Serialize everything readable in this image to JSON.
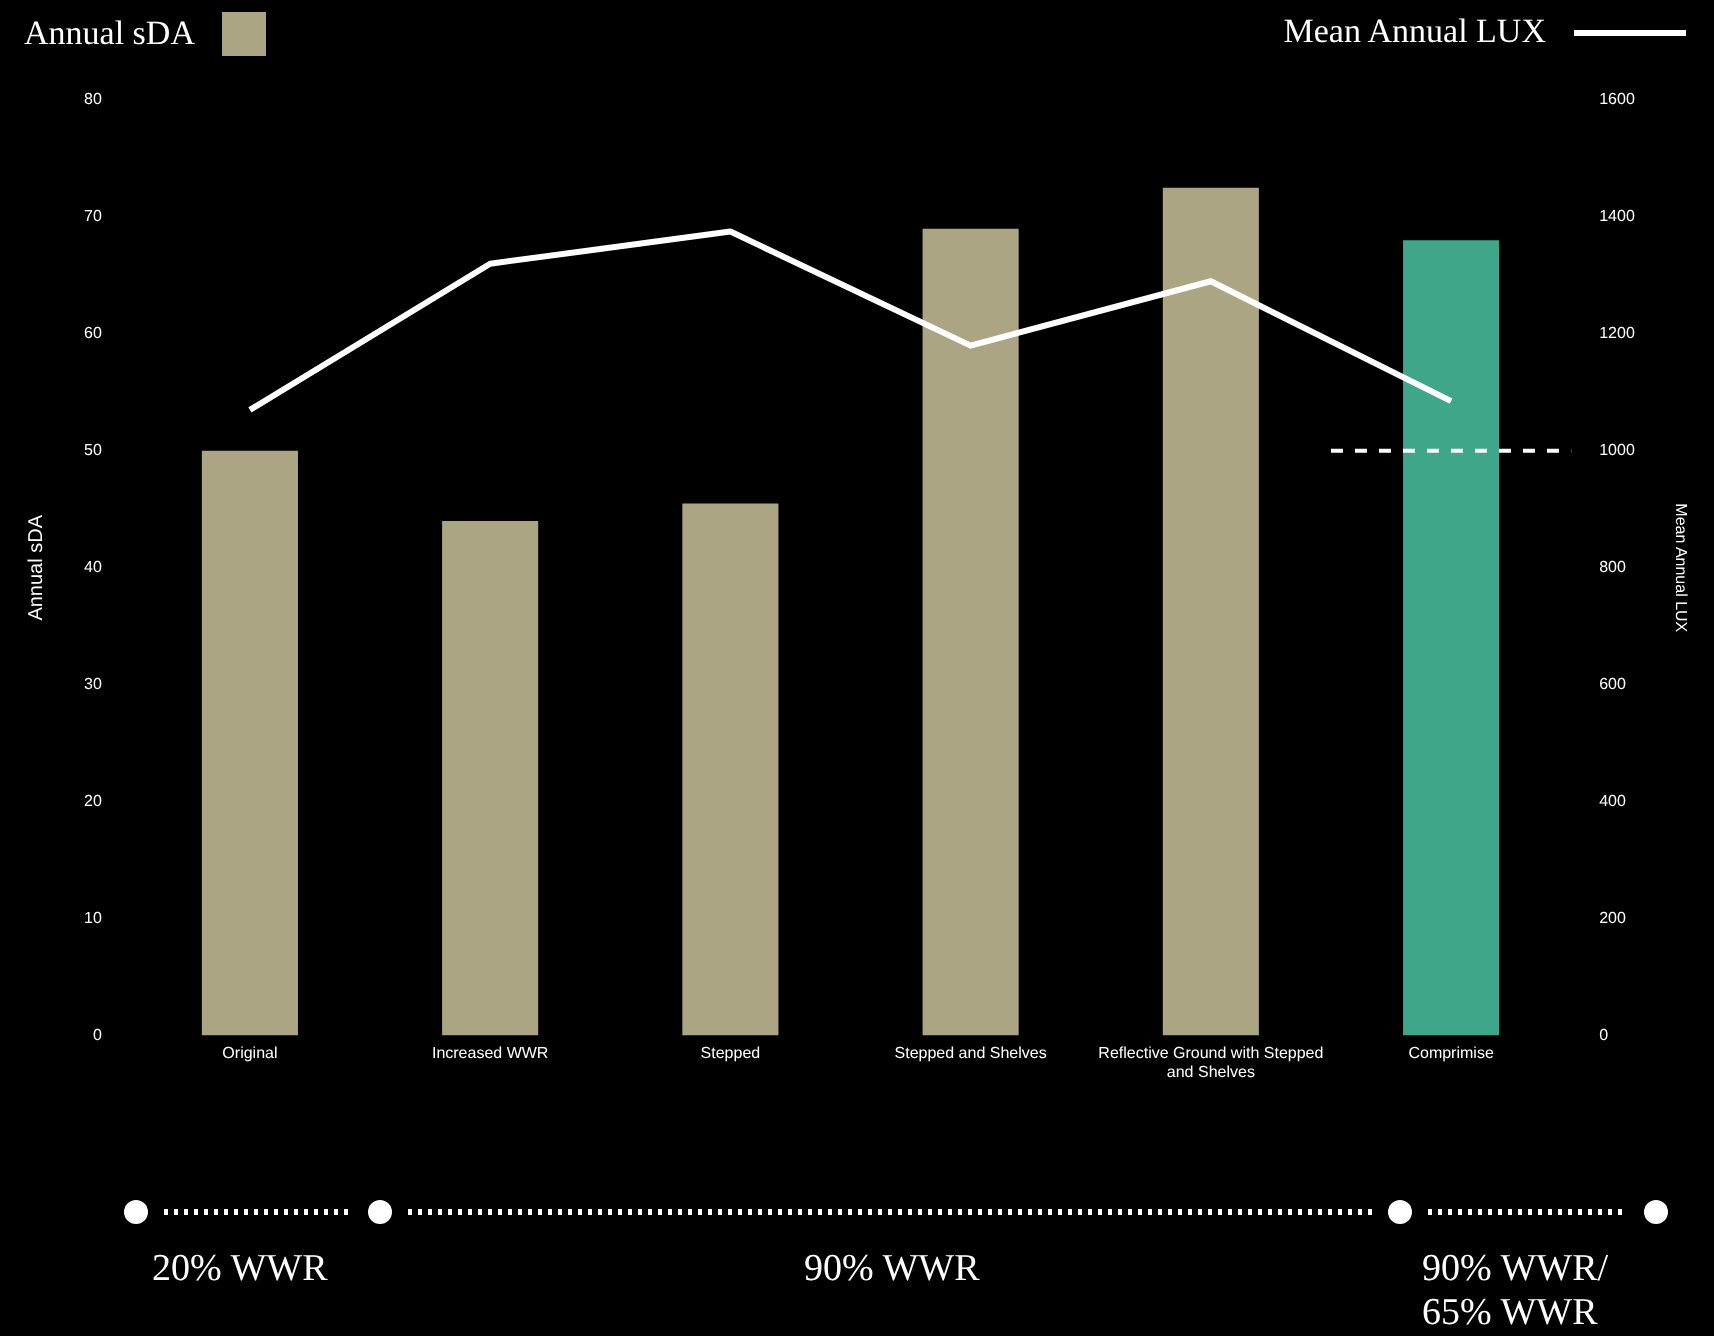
{
  "chart_data": {
    "type": "bar",
    "categories": [
      "Original",
      "Increased WWR",
      "Stepped",
      "Stepped and Shelves",
      "Reflective Ground with Stepped and Shelves",
      "Comprimise"
    ],
    "series": [
      {
        "name": "Annual sDA",
        "color": "#aba584",
        "colors": [
          "#aba584",
          "#aba584",
          "#aba584",
          "#aba584",
          "#aba584",
          "#3fa68a"
        ],
        "values": [
          50,
          44,
          45.5,
          69,
          72.5,
          68
        ]
      },
      {
        "name": "Mean Annual LUX",
        "type": "line",
        "axis": "y2",
        "color": "#ffffff",
        "values": [
          1070,
          1320,
          1375,
          1180,
          1290,
          1085
        ]
      }
    ],
    "ylabel": "Annual sDA",
    "y2label": "Mean Annual LUX",
    "ylim": [
      0,
      80
    ],
    "yticks": [
      0,
      10,
      20,
      30,
      40,
      50,
      60,
      70,
      80
    ],
    "y2lim": [
      0,
      1600
    ],
    "y2ticks": [
      0,
      200,
      400,
      600,
      800,
      1000,
      1200,
      1400,
      1600
    ],
    "ref_lines": [
      {
        "axis": "y2",
        "value": 1000,
        "color": "#ffffff",
        "line_style": "dashed"
      }
    ],
    "annotations": [
      "20% WWR",
      "90% WWR",
      "90% WWR/\n65% WWR"
    ],
    "grid": false,
    "legend": "top",
    "marker": "none"
  }
}
